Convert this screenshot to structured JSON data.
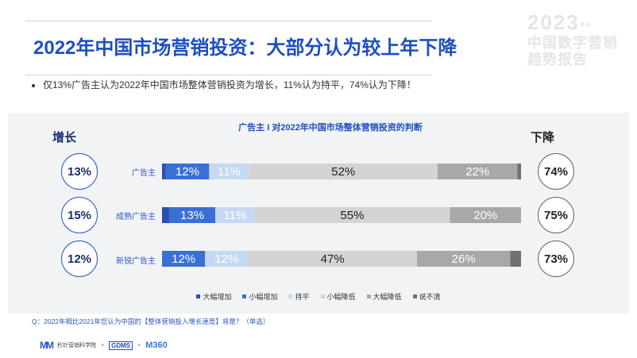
{
  "brand": {
    "year": "2023",
    "year_dots": "»»",
    "line1": "中国数字营销",
    "line2": "趋势报告"
  },
  "page": {
    "title": "2022年中国市场营销投资：大部分认为较上年下降",
    "bullet": "仅13%广告主认为2022年中国市场整体营销投资为增长，11%认为持平，74%认为下降！",
    "question": "Q：2022年相比2021年您认为中国的【整体营销投入增长速度】将是？（单选）"
  },
  "chart_data": {
    "type": "bar",
    "orientation": "horizontal",
    "stacked": true,
    "title": "广告主 I 对2022年中国市场整体营销投资的判断",
    "left_header": "增长",
    "right_header": "下降",
    "categories": [
      "广告主",
      "成熟广告主",
      "新锐广告主"
    ],
    "increase_totals": [
      "13%",
      "15%",
      "12%"
    ],
    "decrease_totals": [
      "74%",
      "75%",
      "73%"
    ],
    "series": [
      {
        "name": "大幅增加",
        "color": "#2b4fb0",
        "values": [
          1,
          2,
          0
        ]
      },
      {
        "name": "小幅增加",
        "color": "#3a6fd8",
        "values": [
          12,
          13,
          12
        ]
      },
      {
        "name": "持平",
        "color": "#c5daf2",
        "values": [
          11,
          11,
          12
        ]
      },
      {
        "name": "小幅降低",
        "color": "#d4d4d4",
        "values": [
          52,
          55,
          47
        ]
      },
      {
        "name": "大幅降低",
        "color": "#a8a8a8",
        "values": [
          22,
          20,
          26
        ]
      },
      {
        "name": "说不清",
        "color": "#707070",
        "values": [
          1,
          0,
          3
        ]
      }
    ],
    "segment_labels": [
      [
        "",
        "12%",
        "11%",
        "52%",
        "22%",
        ""
      ],
      [
        "",
        "13%",
        "11%",
        "55%",
        "20%",
        ""
      ],
      [
        "",
        "12%",
        "12%",
        "47%",
        "26%",
        ""
      ]
    ],
    "xlim": [
      0,
      100
    ],
    "legend_position": "bottom"
  },
  "footer": {
    "brand1": "秒针营销科学院",
    "brand2": "GDMS",
    "brand3": "M360",
    "sep": "×"
  }
}
